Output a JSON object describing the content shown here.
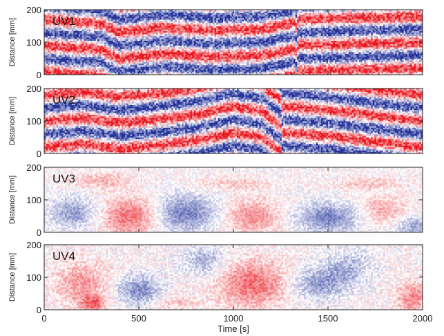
{
  "chart_data": {
    "type": "heatmap",
    "description_units": "Distance [mm] vs Time [s]",
    "x_axis": {
      "label": "Time [s]",
      "lim": [
        0,
        2000
      ],
      "ticks": [
        0,
        500,
        1000,
        1500,
        2000
      ],
      "tick_labels": [
        "0",
        "500",
        "1000",
        "1500",
        "2000"
      ]
    },
    "y_axis": {
      "label": "Distance [mm]",
      "lim": [
        0,
        200
      ],
      "ticks": [
        0,
        100,
        200
      ],
      "tick_labels": [
        "0",
        "100",
        "200"
      ]
    },
    "colormap": {
      "positive": "#e8141c",
      "zero": "#ffffff",
      "negative": "#23329a"
    },
    "panels": [
      {
        "name": "UV1",
        "pattern": "travelling_waves",
        "amplitude": 1.0,
        "band_count": 2.5,
        "control_points": {
          "time": [
            0,
            300,
            400,
            550,
            650,
            900,
            1000,
            1150,
            1250,
            1330,
            1340,
            1600,
            2000
          ],
          "shift_mm": [
            70,
            58,
            30,
            40,
            45,
            35,
            38,
            40,
            52,
            60,
            -10,
            -5,
            0
          ]
        }
      },
      {
        "name": "UV2",
        "pattern": "travelling_waves",
        "amplitude": 1.0,
        "band_count": 2.5,
        "control_points": {
          "time": [
            0,
            200,
            400,
            600,
            850,
            1000,
            1150,
            1250,
            1260,
            1500,
            1700,
            2000
          ],
          "shift_mm": [
            0,
            10,
            -5,
            5,
            25,
            45,
            30,
            -15,
            45,
            35,
            20,
            0
          ]
        }
      },
      {
        "name": "UV3",
        "pattern": "patches",
        "amplitude": 0.3,
        "patches": [
          {
            "t": 150,
            "d": 60,
            "v": -0.8,
            "rt": 120,
            "rd": 45
          },
          {
            "t": 450,
            "d": 50,
            "v": 1.0,
            "rt": 140,
            "rd": 55
          },
          {
            "t": 750,
            "d": 60,
            "v": -1.0,
            "rt": 150,
            "rd": 55
          },
          {
            "t": 1100,
            "d": 50,
            "v": 0.8,
            "rt": 130,
            "rd": 50
          },
          {
            "t": 1500,
            "d": 45,
            "v": -1.0,
            "rt": 150,
            "rd": 45
          },
          {
            "t": 1800,
            "d": 70,
            "v": 0.6,
            "rt": 120,
            "rd": 40
          },
          {
            "t": 1950,
            "d": 20,
            "v": -0.7,
            "rt": 90,
            "rd": 30
          },
          {
            "t": 300,
            "d": 160,
            "v": 0.5,
            "rt": 160,
            "rd": 25
          },
          {
            "t": 1000,
            "d": 150,
            "v": 0.4,
            "rt": 200,
            "rd": 20
          },
          {
            "t": 1700,
            "d": 150,
            "v": 0.4,
            "rt": 200,
            "rd": 20
          }
        ]
      },
      {
        "name": "UV4",
        "pattern": "patches",
        "amplitude": 0.35,
        "patches": [
          {
            "t": 200,
            "d": 80,
            "v": 0.7,
            "rt": 140,
            "rd": 70
          },
          {
            "t": 260,
            "d": 20,
            "v": 1.0,
            "rt": 60,
            "rd": 25
          },
          {
            "t": 500,
            "d": 60,
            "v": -0.9,
            "rt": 110,
            "rd": 45
          },
          {
            "t": 850,
            "d": 150,
            "v": -0.6,
            "rt": 110,
            "rd": 45
          },
          {
            "t": 1100,
            "d": 80,
            "v": 1.0,
            "rt": 180,
            "rd": 70
          },
          {
            "t": 1450,
            "d": 80,
            "v": -0.8,
            "rt": 130,
            "rd": 45
          },
          {
            "t": 1600,
            "d": 130,
            "v": -0.6,
            "rt": 120,
            "rd": 50
          },
          {
            "t": 1950,
            "d": 40,
            "v": 0.8,
            "rt": 90,
            "rd": 50
          },
          {
            "t": 700,
            "d": 20,
            "v": 0.4,
            "rt": 120,
            "rd": 25
          }
        ]
      }
    ]
  }
}
